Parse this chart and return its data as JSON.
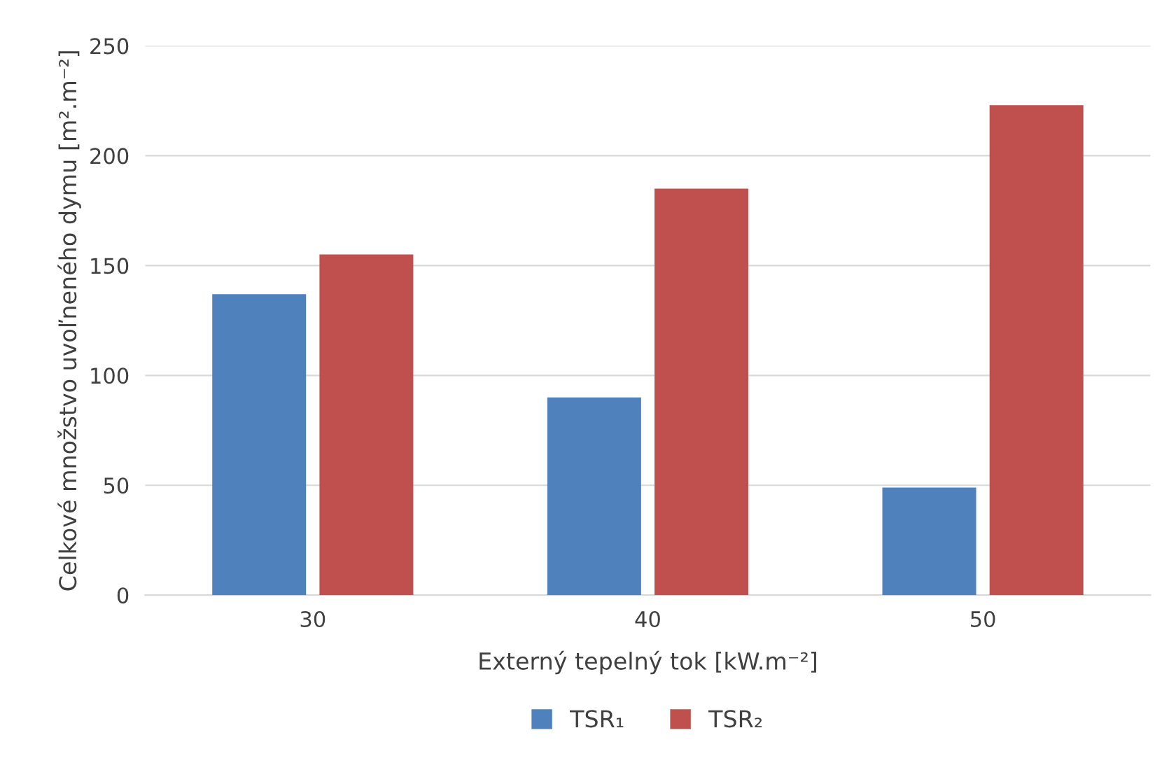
{
  "chart_data": {
    "type": "bar",
    "xlabel": "Externý tepelný tok [kW.m⁻²]",
    "ylabel": "Celkové množstvo uvoľneného dymu [m².m⁻²]",
    "categories": [
      "30",
      "40",
      "50"
    ],
    "series": [
      {
        "name": "TSR₁",
        "color": "#4f81bd",
        "values": [
          137,
          90,
          49
        ]
      },
      {
        "name": "TSR₂",
        "color": "#c0504d",
        "values": [
          155,
          185,
          223
        ]
      }
    ],
    "ylim": [
      0,
      250
    ],
    "yticks": [
      0,
      50,
      100,
      150,
      200,
      250
    ],
    "grid": "y",
    "legend": "bottom"
  }
}
